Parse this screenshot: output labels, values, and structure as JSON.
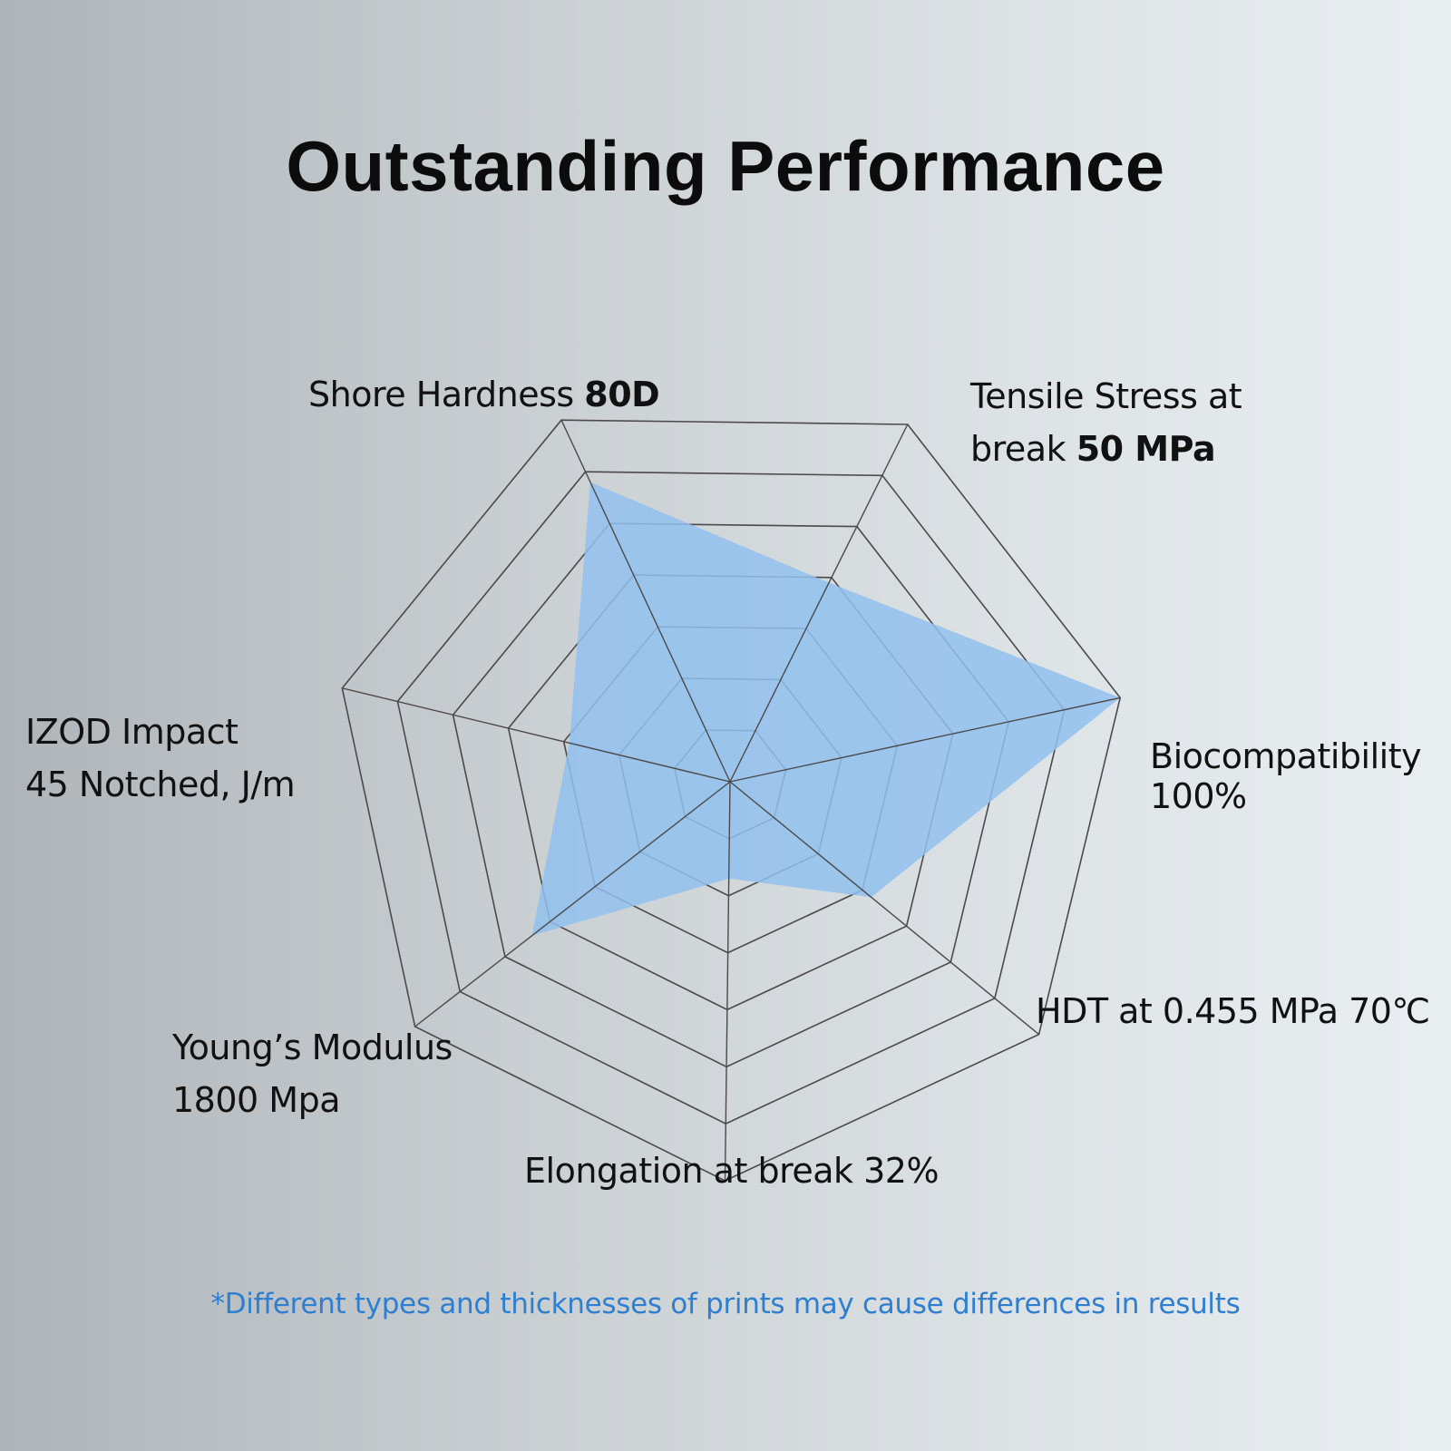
{
  "title": "Outstanding Performance",
  "footnote": "*Different types and thicknesses of prints may cause differences in results",
  "chart_data": {
    "type": "radar",
    "title": "Outstanding Performance",
    "rings": 7,
    "range": [
      0,
      7
    ],
    "grid": true,
    "axes": [
      {
        "id": "shore",
        "name": "Shore Hardness",
        "value_text": "80D"
      },
      {
        "id": "tensile",
        "name": "Tensile Stress at break",
        "value_text": "50 MPa"
      },
      {
        "id": "bio",
        "name": "Biocompatibility",
        "value_text": "100%"
      },
      {
        "id": "hdt",
        "name": "HDT at 0.455 MPa 70℃",
        "value_text": ""
      },
      {
        "id": "elong",
        "name": "Elongation at break 32%",
        "value_text": ""
      },
      {
        "id": "young",
        "name": "Young’s Modulus",
        "value_text": "1800 Mpa"
      },
      {
        "id": "izod",
        "name": "IZOD Impact",
        "value_text": "45 Notched, J/m"
      }
    ],
    "values": [
      5.8,
      3.9,
      7.0,
      3.2,
      1.7,
      4.4,
      2.9
    ],
    "fill_color": "#92c1ee",
    "grid_color": "#4a4a4a"
  }
}
